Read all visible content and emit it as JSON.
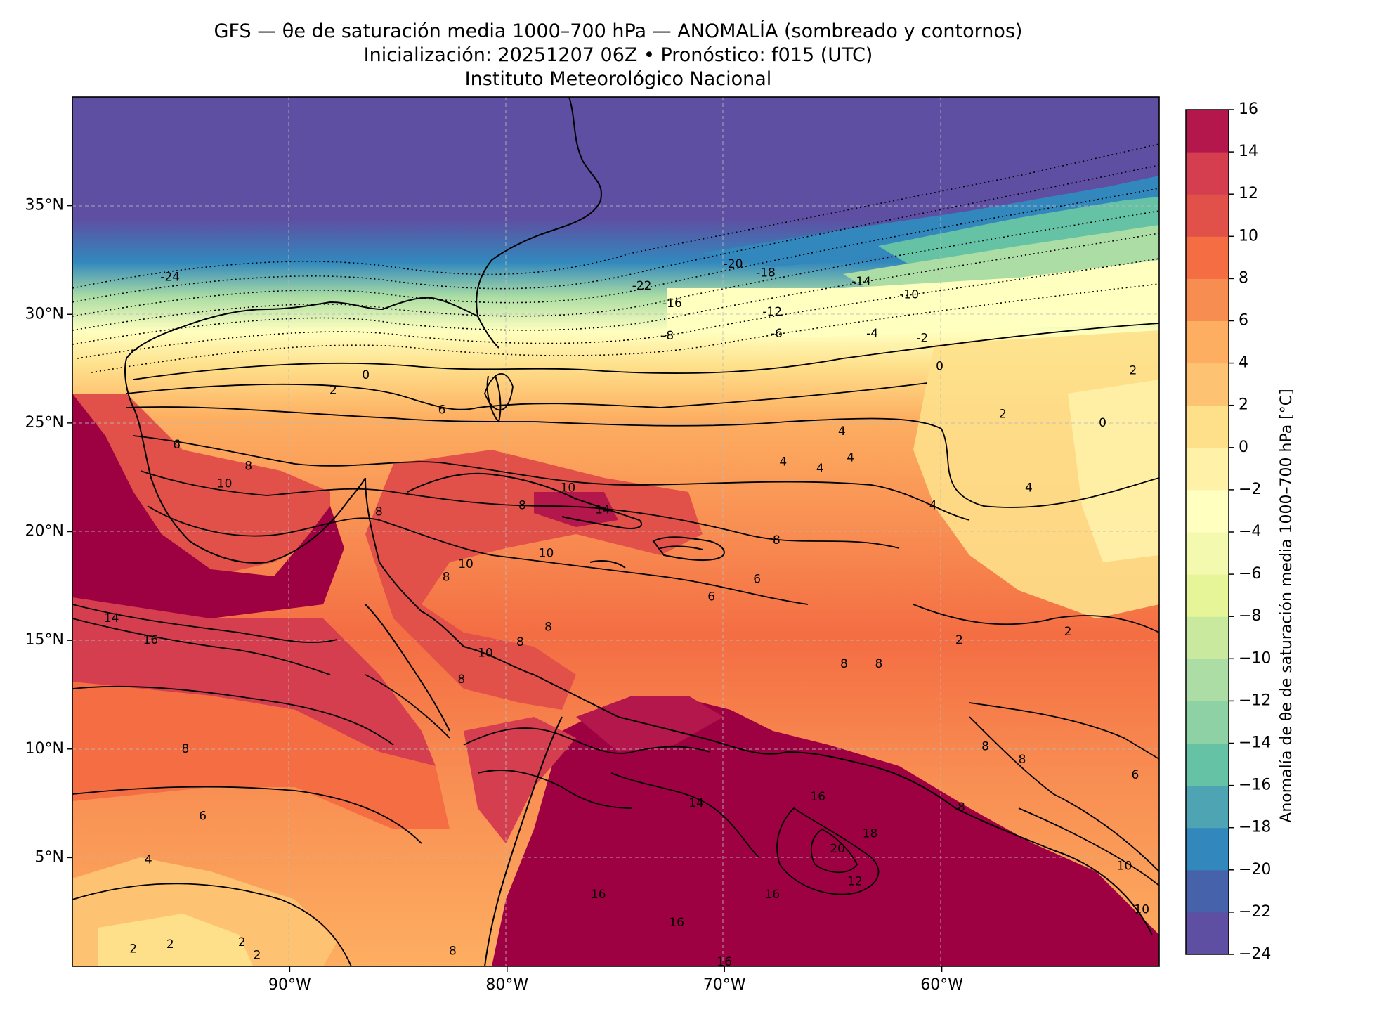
{
  "title": {
    "line1": "GFS — θe de saturación media 1000–700 hPa — ANOMALÍA (sombreado y contornos)",
    "line2": "Inicialización: 20251207 06Z   •   Pronóstico: f015 (UTC)",
    "line3": "Instituto Meteorológico Nacional"
  },
  "map": {
    "lon_range": [
      -100,
      -50
    ],
    "lat_range": [
      0,
      40
    ],
    "lon_ticks": [
      {
        "value": -90,
        "label": "90°W"
      },
      {
        "value": -80,
        "label": "80°W"
      },
      {
        "value": -70,
        "label": "70°W"
      },
      {
        "value": -60,
        "label": "60°W"
      }
    ],
    "lat_ticks": [
      {
        "value": 35,
        "label": "35°N"
      },
      {
        "value": 30,
        "label": "30°N"
      },
      {
        "value": 25,
        "label": "25°N"
      },
      {
        "value": 20,
        "label": "20°N"
      },
      {
        "value": 15,
        "label": "15°N"
      },
      {
        "value": 10,
        "label": "10°N"
      },
      {
        "value": 5,
        "label": "5°N"
      }
    ],
    "gridlines": true,
    "contour_labels": [
      {
        "lon": -95.5,
        "lat": 31.7,
        "text": "-24"
      },
      {
        "lon": -73.8,
        "lat": 31.3,
        "text": "-22"
      },
      {
        "lon": -69.6,
        "lat": 32.3,
        "text": "-20"
      },
      {
        "lon": -68.1,
        "lat": 31.9,
        "text": "-18"
      },
      {
        "lon": -72.4,
        "lat": 30.5,
        "text": "-16"
      },
      {
        "lon": -63.7,
        "lat": 31.5,
        "text": "-14"
      },
      {
        "lon": -67.8,
        "lat": 30.1,
        "text": "-12"
      },
      {
        "lon": -61.5,
        "lat": 30.9,
        "text": "-10"
      },
      {
        "lon": -72.6,
        "lat": 29.0,
        "text": "-8"
      },
      {
        "lon": -67.6,
        "lat": 29.1,
        "text": "-6"
      },
      {
        "lon": -63.2,
        "lat": 29.1,
        "text": "-4"
      },
      {
        "lon": -60.9,
        "lat": 28.9,
        "text": "-2"
      },
      {
        "lon": -86.5,
        "lat": 27.2,
        "text": "0"
      },
      {
        "lon": -60.1,
        "lat": 27.6,
        "text": "0"
      },
      {
        "lon": -52.6,
        "lat": 25.0,
        "text": "0"
      },
      {
        "lon": -88.0,
        "lat": 26.5,
        "text": "2"
      },
      {
        "lon": -57.2,
        "lat": 25.4,
        "text": "2"
      },
      {
        "lon": -51.2,
        "lat": 27.4,
        "text": "2"
      },
      {
        "lon": -83.0,
        "lat": 25.6,
        "text": "6"
      },
      {
        "lon": -95.2,
        "lat": 24.0,
        "text": "6"
      },
      {
        "lon": -64.6,
        "lat": 24.6,
        "text": "4"
      },
      {
        "lon": -67.3,
        "lat": 23.2,
        "text": "4"
      },
      {
        "lon": -65.6,
        "lat": 22.9,
        "text": "4"
      },
      {
        "lon": -64.2,
        "lat": 23.4,
        "text": "4"
      },
      {
        "lon": -56.0,
        "lat": 22.0,
        "text": "4"
      },
      {
        "lon": -60.4,
        "lat": 21.2,
        "text": "4"
      },
      {
        "lon": -91.9,
        "lat": 23.0,
        "text": "8"
      },
      {
        "lon": -85.9,
        "lat": 20.9,
        "text": "8"
      },
      {
        "lon": -79.3,
        "lat": 21.2,
        "text": "8"
      },
      {
        "lon": -67.6,
        "lat": 19.6,
        "text": "8"
      },
      {
        "lon": -70.6,
        "lat": 17.0,
        "text": "6"
      },
      {
        "lon": -68.5,
        "lat": 17.8,
        "text": "6"
      },
      {
        "lon": -81.9,
        "lat": 18.5,
        "text": "10"
      },
      {
        "lon": -82.8,
        "lat": 17.9,
        "text": "8"
      },
      {
        "lon": -93.0,
        "lat": 22.2,
        "text": "10"
      },
      {
        "lon": -77.2,
        "lat": 22.0,
        "text": "10"
      },
      {
        "lon": -78.2,
        "lat": 19.0,
        "text": "10"
      },
      {
        "lon": -75.6,
        "lat": 21.0,
        "text": "14"
      },
      {
        "lon": -98.2,
        "lat": 16.0,
        "text": "14"
      },
      {
        "lon": -96.4,
        "lat": 15.0,
        "text": "16"
      },
      {
        "lon": -79.4,
        "lat": 14.9,
        "text": "8"
      },
      {
        "lon": -78.1,
        "lat": 15.6,
        "text": "8"
      },
      {
        "lon": -81.0,
        "lat": 14.4,
        "text": "10"
      },
      {
        "lon": -82.1,
        "lat": 13.2,
        "text": "8"
      },
      {
        "lon": -59.2,
        "lat": 15.0,
        "text": "2"
      },
      {
        "lon": -54.2,
        "lat": 15.4,
        "text": "2"
      },
      {
        "lon": -64.5,
        "lat": 13.9,
        "text": "8"
      },
      {
        "lon": -62.9,
        "lat": 13.9,
        "text": "8"
      },
      {
        "lon": -94.8,
        "lat": 10.0,
        "text": "8"
      },
      {
        "lon": -58.0,
        "lat": 10.1,
        "text": "8"
      },
      {
        "lon": -56.3,
        "lat": 9.5,
        "text": "8"
      },
      {
        "lon": -59.1,
        "lat": 7.3,
        "text": "8"
      },
      {
        "lon": -51.1,
        "lat": 8.8,
        "text": "6"
      },
      {
        "lon": -94.0,
        "lat": 6.9,
        "text": "6"
      },
      {
        "lon": -96.5,
        "lat": 4.9,
        "text": "4"
      },
      {
        "lon": -71.3,
        "lat": 7.5,
        "text": "14"
      },
      {
        "lon": -65.7,
        "lat": 7.8,
        "text": "16"
      },
      {
        "lon": -63.3,
        "lat": 6.1,
        "text": "18"
      },
      {
        "lon": -64.8,
        "lat": 5.4,
        "text": "20"
      },
      {
        "lon": -64.0,
        "lat": 3.9,
        "text": "12"
      },
      {
        "lon": -75.8,
        "lat": 3.3,
        "text": "16"
      },
      {
        "lon": -67.8,
        "lat": 3.3,
        "text": "16"
      },
      {
        "lon": -72.2,
        "lat": 2.0,
        "text": "16"
      },
      {
        "lon": -70.0,
        "lat": 0.2,
        "text": "16"
      },
      {
        "lon": -51.6,
        "lat": 4.6,
        "text": "10"
      },
      {
        "lon": -50.8,
        "lat": 2.6,
        "text": "10"
      },
      {
        "lon": -97.2,
        "lat": 0.8,
        "text": "2"
      },
      {
        "lon": -95.5,
        "lat": 1.0,
        "text": "2"
      },
      {
        "lon": -92.2,
        "lat": 1.1,
        "text": "2"
      },
      {
        "lon": -91.5,
        "lat": 0.5,
        "text": "2"
      },
      {
        "lon": -82.5,
        "lat": 0.7,
        "text": "8"
      }
    ]
  },
  "colorbar": {
    "label": "Anomalía de θe de saturación media 1000–700 hPa [°C]",
    "levels": [
      -24,
      -22,
      -20,
      -18,
      -16,
      -14,
      -12,
      -10,
      -8,
      -6,
      -4,
      -2,
      0,
      2,
      4,
      6,
      8,
      10,
      12,
      14,
      16
    ],
    "tick_labels": [
      "−24",
      "−22",
      "−20",
      "−18",
      "−16",
      "−14",
      "−12",
      "−10",
      "−8",
      "−6",
      "−4",
      "−2",
      "0",
      "2",
      "4",
      "6",
      "8",
      "10",
      "12",
      "14",
      "16"
    ],
    "colors": [
      "#5e4fa2",
      "#4562aa",
      "#3288bd",
      "#4fa4b3",
      "#66c2a5",
      "#8dd1a4",
      "#abdda4",
      "#c9e99e",
      "#e6f598",
      "#f3fab0",
      "#ffffbf",
      "#fff1a8",
      "#fee08b",
      "#fdc372",
      "#fdae61",
      "#f88d52",
      "#f46d43",
      "#e25149",
      "#d53e4f",
      "#b3174b",
      "#9e0142"
    ]
  }
}
